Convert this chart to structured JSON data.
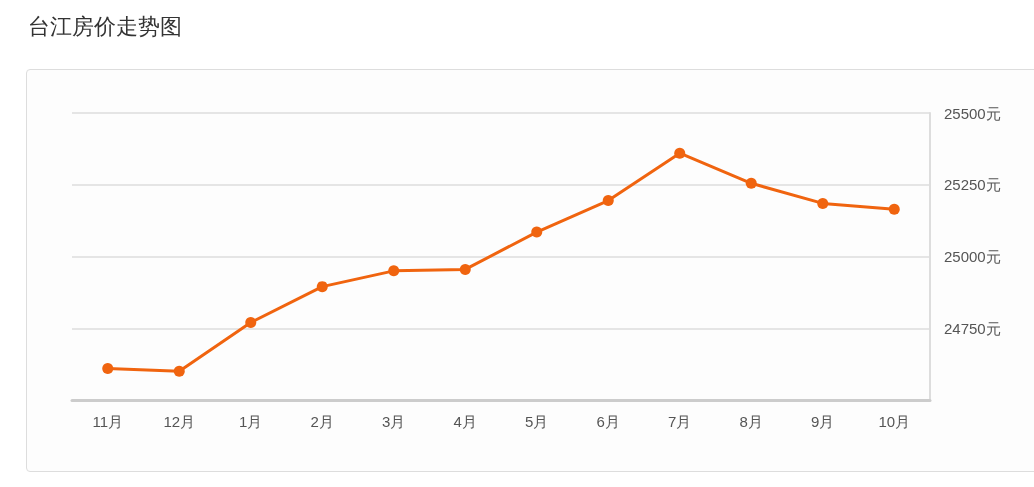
{
  "chart_data": {
    "type": "line",
    "title": "台江房价走势图",
    "categories": [
      "11月",
      "12月",
      "1月",
      "2月",
      "3月",
      "4月",
      "5月",
      "6月",
      "7月",
      "8月",
      "9月",
      "10月"
    ],
    "series": [
      {
        "color": "#f0640f",
        "values": [
          24610,
          24600,
          24770,
          24895,
          24950,
          24955,
          25085,
          25195,
          25360,
          25255,
          25185,
          25165
        ]
      }
    ],
    "ylim": [
      24500,
      25500
    ],
    "yticks": [
      {
        "value": 24500,
        "label": null
      },
      {
        "value": 24750,
        "label": "24750元"
      },
      {
        "value": 25000,
        "label": "25000元"
      },
      {
        "value": 25250,
        "label": "25250元"
      },
      {
        "value": 25500,
        "label": "25500元"
      }
    ],
    "grid": "y",
    "marker": "circle",
    "line_style": "solid"
  }
}
